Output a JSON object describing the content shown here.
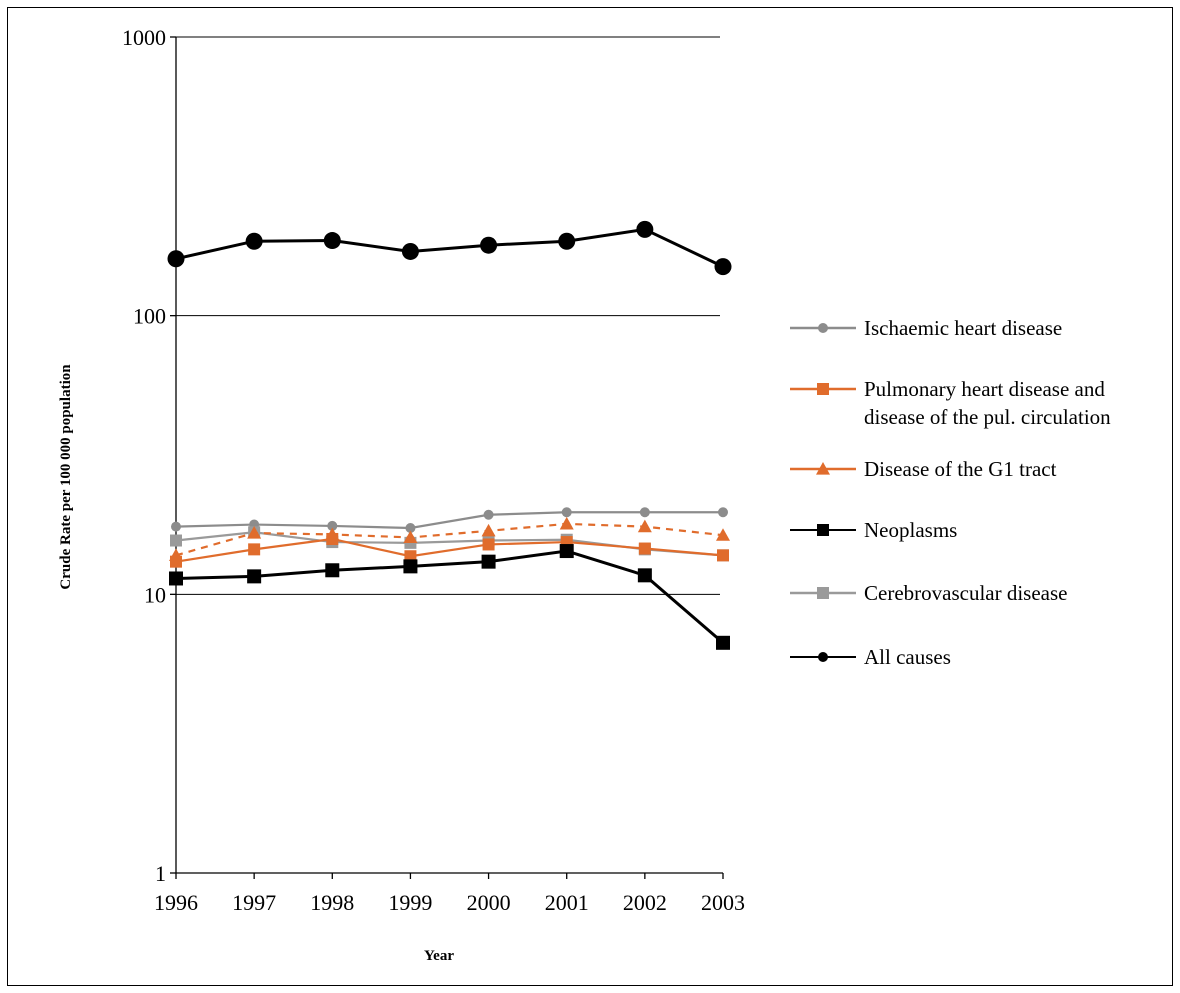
{
  "chart_data": {
    "type": "line",
    "title": "",
    "xlabel": "Year",
    "ylabel": "Crude Rate per 100 000 population",
    "y_scale": "log",
    "ylim": [
      1,
      1000
    ],
    "y_ticks": [
      {
        "value": 1,
        "label": "1"
      },
      {
        "value": 10,
        "label": "10"
      },
      {
        "value": 100,
        "label": "100"
      },
      {
        "value": 1000,
        "label": "1000"
      }
    ],
    "categories": [
      "1996",
      "1997",
      "1998",
      "1999",
      "2000",
      "2001",
      "2002",
      "2003"
    ],
    "grid": "horizontal",
    "legend_position": "right",
    "series": [
      {
        "name": "Ischaemic heart disease",
        "color": "#8c8c8c",
        "marker": "circle",
        "dashed": false,
        "values": [
          17.5,
          17.8,
          17.6,
          17.3,
          19.3,
          19.7,
          19.7,
          19.7
        ]
      },
      {
        "name": "Pulmonary heart disease and disease of the pul. circulation",
        "color": "#e06c2c",
        "marker": "square",
        "dashed": false,
        "values": [
          13.1,
          14.5,
          15.8,
          13.7,
          15.1,
          15.4,
          14.6,
          13.8
        ]
      },
      {
        "name": "Disease of the G1 tract",
        "color": "#e06c2c",
        "marker": "triangle",
        "dashed": true,
        "values": [
          13.8,
          16.6,
          16.4,
          16.0,
          16.9,
          17.9,
          17.5,
          16.3
        ]
      },
      {
        "name": "Neoplasms",
        "color": "#000000",
        "marker": "square",
        "dashed": false,
        "values": [
          11.4,
          11.6,
          12.2,
          12.6,
          13.1,
          14.3,
          11.7,
          6.7
        ]
      },
      {
        "name": "Cerebrovascular disease",
        "color": "#9a9a9a",
        "marker": "square",
        "dashed": false,
        "values": [
          15.6,
          16.7,
          15.4,
          15.3,
          15.6,
          15.7,
          14.5,
          13.8
        ]
      },
      {
        "name": "All causes",
        "color": "#000000",
        "marker": "circle",
        "dashed": false,
        "values": [
          160,
          185,
          186,
          170,
          179,
          185,
          204,
          150
        ]
      }
    ],
    "legend": {
      "items": [
        {
          "series": 0,
          "lines": [
            "Ischaemic heart disease"
          ]
        },
        {
          "series": 1,
          "lines": [
            "Pulmonary heart disease and",
            "disease of the pul. circulation"
          ]
        },
        {
          "series": 2,
          "lines": [
            "Disease of the G1 tract"
          ]
        },
        {
          "series": 3,
          "lines": [
            "Neoplasms"
          ]
        },
        {
          "series": 4,
          "lines": [
            "Cerebrovascular disease"
          ]
        },
        {
          "series": 5,
          "lines": [
            "All causes"
          ]
        }
      ]
    }
  }
}
